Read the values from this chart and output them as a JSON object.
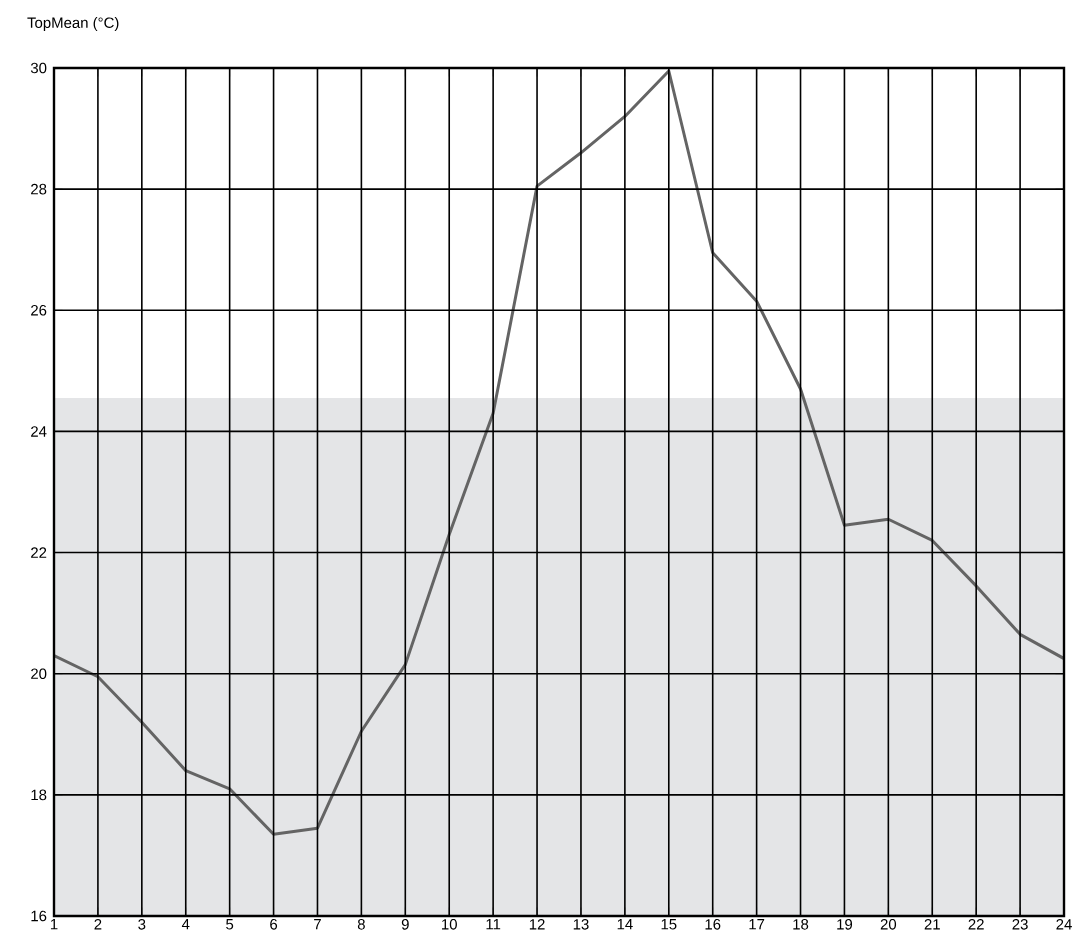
{
  "chart_data": {
    "type": "line",
    "ylabel": "TopMean (°C)",
    "x": [
      1,
      2,
      3,
      4,
      5,
      6,
      7,
      8,
      9,
      10,
      11,
      12,
      13,
      14,
      15,
      16,
      17,
      18,
      19,
      20,
      21,
      22,
      23,
      24
    ],
    "series": [
      {
        "color": "#646464",
        "values": [
          20.3,
          19.95,
          19.2,
          18.4,
          18.1,
          17.35,
          17.45,
          19.05,
          20.15,
          22.3,
          24.3,
          28.05,
          28.6,
          29.2,
          29.95,
          26.95,
          26.15,
          24.7,
          22.45,
          22.55,
          22.2,
          21.45,
          20.65,
          20.25
        ]
      }
    ],
    "xlim": [
      1,
      24
    ],
    "xticks": [
      1,
      2,
      3,
      4,
      5,
      6,
      7,
      8,
      9,
      10,
      11,
      12,
      13,
      14,
      15,
      16,
      17,
      18,
      19,
      20,
      21,
      22,
      23,
      24
    ],
    "ylim": [
      16,
      30
    ],
    "yticks": [
      16,
      18,
      20,
      22,
      24,
      26,
      28,
      30
    ],
    "bands": [
      {
        "axis": "y",
        "from": 16,
        "to": 24.55,
        "color": "#e4e5e7"
      }
    ],
    "grid": true,
    "marker": "none",
    "line_style": "solid"
  }
}
